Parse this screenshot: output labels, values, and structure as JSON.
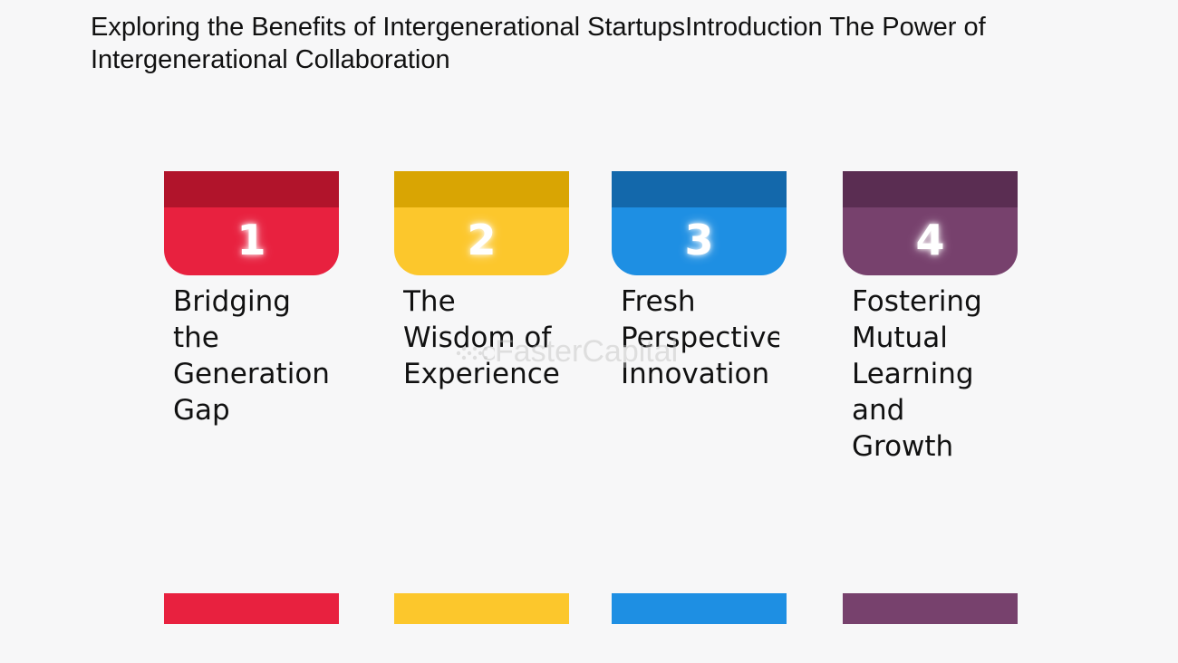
{
  "title": "Exploring the Benefits of Intergenerational StartupsIntroduction The Power of Intergenerational Collaboration",
  "watermark": "FasterCapital",
  "cards": [
    {
      "number": "1",
      "label": "Bridging\nthe\nGeneration\nGap",
      "color": "#e8213f",
      "dark": "#b1142b"
    },
    {
      "number": "2",
      "label": "The\nWisdom of\nExperience",
      "color": "#fcc72c",
      "dark": "#d9a503"
    },
    {
      "number": "3",
      "label": "Fresh\nPerspective\nInnovation",
      "color": "#1e8fe3",
      "dark": "#1368ab"
    },
    {
      "number": "4",
      "label": "Fostering\nMutual\nLearning\nand\nGrowth",
      "color": "#77416d",
      "dark": "#5a2d52"
    }
  ]
}
